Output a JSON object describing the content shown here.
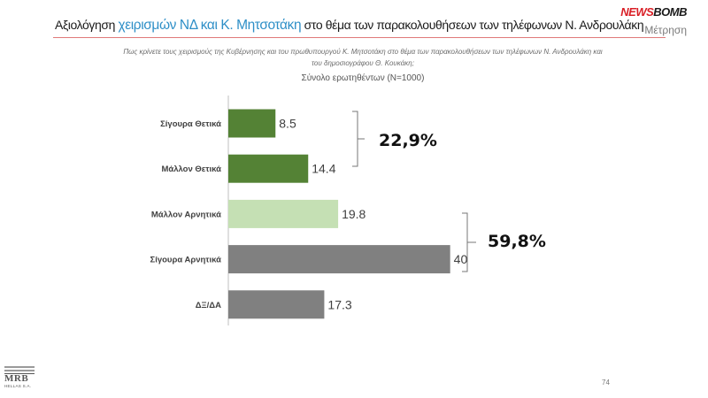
{
  "header": {
    "title_prefix": "Αξιολόγηση ",
    "title_highlight": "χειρισμών ΝΔ και Κ. Μητσοτάκη",
    "title_suffix": " στο θέμα των παρακολουθήσεων των τηλέφωνων Ν. Ανδρουλάκη",
    "logo_news": "NEWS",
    "logo_bomb": "BOMB",
    "metrisi": "Μέτρηση"
  },
  "question": {
    "line1": "Πως κρίνετε τους χειρισμούς της Κυβέρνησης και του πρωθυπουργού Κ. Μητσοτάκη στο θέμα των παρακολουθήσεων των τηλέφωνων Ν. Ανδρουλάκη και",
    "line2": "του δημοσιογράφου Θ. Κουκάκη;",
    "base": "Σύνολο ερωτηθέντων (N=1000)"
  },
  "colors": {
    "positive": "#548235",
    "leaning_negative": "#c5e0b4",
    "negative": "#808080",
    "dk": "#808080",
    "title_highlight": "#2e8fc7",
    "logo_red": "#d91f26"
  },
  "chart_data": {
    "type": "bar",
    "orientation": "horizontal",
    "categories": [
      "Σίγουρα Θετικά",
      "Μάλλον Θετικά",
      "Μάλλον Αρνητικά",
      "Σίγουρα Αρνητικά",
      "ΔΞ/ΔΑ"
    ],
    "values": [
      8.5,
      14.4,
      19.8,
      40,
      17.3
    ],
    "value_labels": [
      "8.5",
      "14.4",
      "19.8",
      "40",
      "17.3"
    ],
    "bar_colors": [
      "#548235",
      "#548235",
      "#c5e0b4",
      "#808080",
      "#808080"
    ],
    "xlim": [
      0,
      45
    ],
    "grid": false,
    "groups": [
      {
        "label": "22,9%",
        "from": 0,
        "to": 1
      },
      {
        "label": "59,8%",
        "from": 2,
        "to": 3
      }
    ]
  },
  "footer": {
    "page_number": "74",
    "logo_name": "MRB",
    "logo_sub": "HELLAS S.A."
  }
}
